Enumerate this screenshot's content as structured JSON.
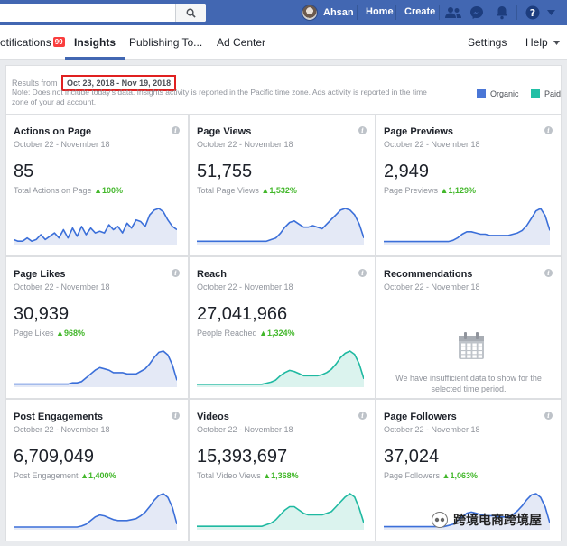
{
  "topbar": {
    "user_name": "Ahsan",
    "home_label": "Home",
    "create_label": "Create"
  },
  "tabs": {
    "notifications_label": "otifications",
    "notifications_badge": "99",
    "insights_label": "Insights",
    "publishing_label": "Publishing To...",
    "adcenter_label": "Ad Center",
    "settings_label": "Settings",
    "help_label": "Help"
  },
  "results": {
    "prefix": "Results from",
    "date_range": "Oct 23, 2018 - Nov 19, 2018",
    "note": "Note: Does not include today's data. Insights activity is reported in the Pacific time zone. Ads activity is reported in the time zone of your ad account.",
    "legend": [
      {
        "label": "Organic",
        "color": "#4a76d6"
      },
      {
        "label": "Paid",
        "color": "#21bfa5"
      }
    ]
  },
  "colors": {
    "organic_line": "#3b6fd9",
    "organic_fill": "#e4e9f6",
    "paid_line": "#1fb9a1",
    "paid_fill": "#dbf3ee"
  },
  "cards": [
    {
      "title": "Actions on Page",
      "date": "October 22 - November 18",
      "value": "85",
      "sub_label": "Total Actions on Page",
      "change": "100%",
      "series": "organic",
      "chart_data": {
        "type": "area",
        "values": [
          2,
          1,
          1,
          3,
          1,
          2,
          5,
          2,
          4,
          6,
          3,
          8,
          3,
          9,
          4,
          10,
          5,
          9,
          6,
          7,
          6,
          11,
          8,
          10,
          6,
          12,
          9,
          14,
          13,
          10,
          17,
          20,
          21,
          19,
          14,
          10,
          8
        ]
      }
    },
    {
      "title": "Page Views",
      "date": "October 22 - November 18",
      "value": "51,755",
      "sub_label": "Total Page Views",
      "change": "1,532%",
      "series": "organic",
      "chart_data": {
        "type": "area",
        "values": [
          1,
          1,
          1,
          1,
          1,
          1,
          1,
          1,
          1,
          1,
          1,
          1,
          1,
          1,
          1,
          1,
          2,
          3,
          6,
          10,
          13,
          14,
          12,
          10,
          10,
          11,
          10,
          9,
          12,
          15,
          18,
          21,
          22,
          21,
          18,
          12,
          3
        ]
      }
    },
    {
      "title": "Page Previews",
      "date": "October 22 - November 18",
      "value": "2,949",
      "sub_label": "Page Previews",
      "change": "1,129%",
      "series": "organic",
      "chart_data": {
        "type": "area",
        "values": [
          1,
          1,
          1,
          1,
          1,
          1,
          1,
          1,
          1,
          1,
          1,
          1,
          1,
          1,
          1,
          2,
          4,
          7,
          9,
          9,
          8,
          7,
          7,
          6,
          6,
          6,
          6,
          6,
          7,
          8,
          10,
          14,
          20,
          26,
          28,
          22,
          10
        ]
      }
    },
    {
      "title": "Page Likes",
      "date": "October 22 - November 18",
      "value": "30,939",
      "sub_label": "Page Likes",
      "change": "968%",
      "series": "organic",
      "chart_data": {
        "type": "area",
        "values": [
          1,
          1,
          1,
          1,
          1,
          1,
          1,
          1,
          1,
          1,
          1,
          1,
          1,
          2,
          2,
          3,
          6,
          9,
          12,
          14,
          13,
          12,
          10,
          10,
          10,
          9,
          9,
          9,
          11,
          13,
          17,
          22,
          26,
          27,
          24,
          16,
          4
        ]
      }
    },
    {
      "title": "Reach",
      "date": "October 22 - November 18",
      "value": "27,041,966",
      "sub_label": "People Reached",
      "change": "1,324%",
      "series": "paid",
      "chart_data": {
        "type": "area",
        "values": [
          1,
          1,
          1,
          1,
          1,
          1,
          1,
          1,
          1,
          1,
          1,
          1,
          1,
          1,
          1,
          2,
          3,
          5,
          9,
          12,
          14,
          13,
          11,
          9,
          9,
          9,
          9,
          10,
          12,
          15,
          20,
          26,
          30,
          32,
          29,
          20,
          6
        ]
      }
    },
    {
      "title": "Recommendations",
      "date": "October 22 - November 18",
      "empty": true,
      "empty_text": "We have insufficient data to show for the selected time period."
    },
    {
      "title": "Post Engagements",
      "date": "October 22 - November 18",
      "value": "6,709,049",
      "sub_label": "Post Engagement",
      "change": "1,400%",
      "series": "organic",
      "chart_data": {
        "type": "area",
        "values": [
          1,
          1,
          1,
          1,
          1,
          1,
          1,
          1,
          1,
          1,
          1,
          1,
          1,
          1,
          1,
          2,
          4,
          8,
          12,
          14,
          13,
          11,
          9,
          8,
          8,
          8,
          9,
          10,
          13,
          17,
          23,
          30,
          35,
          37,
          33,
          22,
          4
        ]
      }
    },
    {
      "title": "Videos",
      "date": "October 22 - November 18",
      "value": "15,393,697",
      "sub_label": "Total Video Views",
      "change": "1,368%",
      "series": "paid",
      "chart_data": {
        "type": "area",
        "values": [
          1,
          1,
          1,
          1,
          1,
          1,
          1,
          1,
          1,
          1,
          1,
          1,
          1,
          1,
          1,
          2,
          3,
          5,
          8,
          11,
          13,
          13,
          11,
          9,
          8,
          8,
          8,
          8,
          9,
          10,
          13,
          16,
          19,
          21,
          19,
          12,
          3
        ]
      }
    },
    {
      "title": "Page Followers",
      "date": "October 22 - November 18",
      "value": "37,024",
      "sub_label": "Page Followers",
      "change": "1,063%",
      "series": "organic",
      "chart_data": {
        "type": "area",
        "values": [
          1,
          1,
          1,
          1,
          1,
          1,
          1,
          1,
          1,
          1,
          1,
          1,
          1,
          1,
          2,
          3,
          6,
          9,
          12,
          13,
          12,
          11,
          10,
          10,
          10,
          9,
          9,
          9,
          11,
          14,
          18,
          23,
          27,
          28,
          25,
          17,
          4
        ]
      }
    }
  ],
  "watermark": "跨境电商跨境屋"
}
